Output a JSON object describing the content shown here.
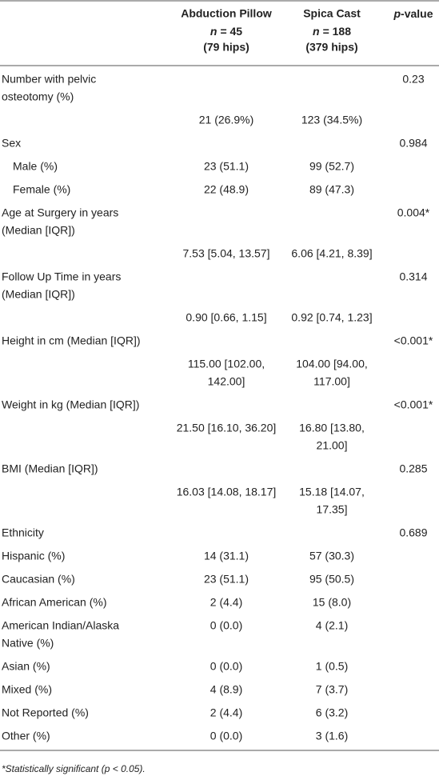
{
  "header": {
    "columns": [
      {
        "title": "Abduction Pillow",
        "n_symbol": "n",
        "n": "= 45",
        "hips": "(79 hips)"
      },
      {
        "title": "Spica Cast",
        "n_symbol": "n",
        "n": "= 188",
        "hips": "(379 hips)"
      }
    ],
    "p_symbol": "p",
    "p_suffix": "-value"
  },
  "rows": [
    {
      "label": [
        "Number with pelvic",
        "osteotomy (%)"
      ],
      "p": "0.23"
    },
    {
      "pillow": "21 (26.9%)",
      "cast": "123 (34.5%)"
    },
    {
      "label": "Sex",
      "p": "0.984"
    },
    {
      "label": "Male (%)",
      "indent": true,
      "pillow": "23 (51.1)",
      "cast": "99 (52.7)"
    },
    {
      "label": "Female (%)",
      "indent": true,
      "pillow": "22 (48.9)",
      "cast": "89 (47.3)"
    },
    {
      "label": [
        "Age at Surgery in years",
        "(Median [IQR])"
      ],
      "p": "0.004*"
    },
    {
      "pillow": "7.53 [5.04, 13.57]",
      "cast": "6.06 [4.21, 8.39]"
    },
    {
      "label": [
        "Follow Up Time in years",
        "(Median [IQR])"
      ],
      "p": "0.314"
    },
    {
      "pillow": "0.90 [0.66, 1.15]",
      "cast": "0.92 [0.74, 1.23]"
    },
    {
      "label": "Height in cm (Median [IQR])",
      "p": "<0.001*"
    },
    {
      "pillow": [
        "115.00 [102.00,",
        "142.00]"
      ],
      "cast": [
        "104.00 [94.00,",
        "117.00]"
      ]
    },
    {
      "label": "Weight in kg (Median [IQR])",
      "p": "<0.001*"
    },
    {
      "pillow": "21.50 [16.10, 36.20]",
      "cast": [
        "16.80 [13.80,",
        "21.00]"
      ]
    },
    {
      "label": "BMI (Median [IQR])",
      "p": "0.285"
    },
    {
      "pillow": "16.03 [14.08, 18.17]",
      "cast": [
        "15.18 [14.07,",
        "17.35]"
      ]
    },
    {
      "label": "Ethnicity",
      "p": "0.689"
    },
    {
      "label": "Hispanic (%)",
      "pillow": "14 (31.1)",
      "cast": "57 (30.3)"
    },
    {
      "label": "Caucasian (%)",
      "pillow": "23 (51.1)",
      "cast": "95 (50.5)"
    },
    {
      "label": "African American (%)",
      "pillow": "2 (4.4)",
      "cast": "15 (8.0)"
    },
    {
      "label": [
        "American Indian/Alaska",
        "Native (%)"
      ],
      "pillow": "0 (0.0)",
      "cast": "4 (2.1)"
    },
    {
      "label": "Asian (%)",
      "pillow": "0 (0.0)",
      "cast": "1 (0.5)"
    },
    {
      "label": "Mixed (%)",
      "pillow": "4 (8.9)",
      "cast": "7 (3.7)"
    },
    {
      "label": "Not Reported (%)",
      "pillow": "2 (4.4)",
      "cast": "6 (3.2)"
    },
    {
      "label": "Other (%)",
      "pillow": "0 (0.0)",
      "cast": "3 (1.6)"
    }
  ],
  "footnote": "*Statistically significant (p < 0.05)."
}
